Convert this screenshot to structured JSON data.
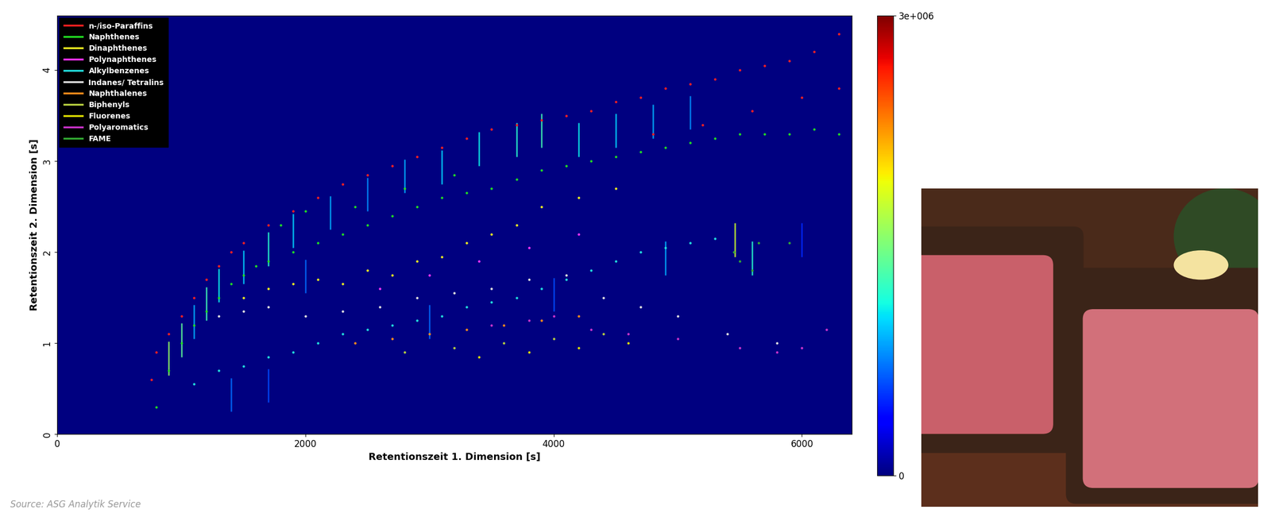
{
  "chart_data": {
    "type": "scatter",
    "x_label": "Retentionszeit 1. Dimension [s]",
    "y_label": "Retentionszeit 2. Dimension [s]",
    "source": "Source: ASG Analytik Service",
    "xlim": [
      0,
      6400
    ],
    "xticks": [
      0,
      2000,
      4000,
      6000
    ],
    "ylim": [
      0,
      4.6
    ],
    "yticks": [
      0,
      1,
      2,
      3,
      4
    ],
    "legend": "upper left",
    "marker": "dot",
    "colorbar": {
      "range": [
        0,
        3000000
      ],
      "ticks": [
        0,
        {
          "value": 3000000,
          "label": "3e+006"
        }
      ]
    },
    "peaks": {
      "x": [
        900,
        1000,
        1100,
        1200,
        1300,
        1400,
        1500,
        1700,
        1700,
        1900,
        2000,
        2200,
        2500,
        2800,
        3000,
        3100,
        3400,
        3700,
        3900,
        4000,
        4200,
        4500,
        4800,
        4900,
        5100,
        5460,
        5600,
        6000
      ],
      "y": [
        0.9,
        1.1,
        1.3,
        1.5,
        1.7,
        0.5,
        1.9,
        2.1,
        0.6,
        2.3,
        1.8,
        2.5,
        2.7,
        2.9,
        1.3,
        3.0,
        3.2,
        3.3,
        3.4,
        1.6,
        3.3,
        3.4,
        3.5,
        2.0,
        3.6,
        2.2,
        2.0,
        2.2
      ],
      "intensity": [
        1600000,
        1400000,
        900000,
        1300000,
        1100000,
        700000,
        1000000,
        1200000,
        600000,
        1000000,
        700000,
        900000,
        800000,
        900000,
        700000,
        1000000,
        1100000,
        1200000,
        1300000,
        600000,
        1100000,
        1000000,
        900000,
        900000,
        800000,
        1800000,
        1200000,
        500000
      ]
    },
    "series": [
      {
        "name": "n-/iso-Paraffins",
        "color": "#ff2020",
        "x": [
          760,
          800,
          900,
          1000,
          1100,
          1200,
          1300,
          1400,
          1500,
          1700,
          1900,
          2100,
          2300,
          2500,
          2700,
          2900,
          3100,
          3300,
          3500,
          3700,
          3900,
          4100,
          4300,
          4500,
          4700,
          4900,
          5100,
          5300,
          5500,
          5700,
          5900,
          6100,
          6300,
          4800,
          5200,
          5600,
          6000,
          6300
        ],
        "y": [
          0.6,
          0.9,
          1.1,
          1.3,
          1.5,
          1.7,
          1.85,
          2.0,
          2.1,
          2.3,
          2.45,
          2.6,
          2.75,
          2.85,
          2.95,
          3.05,
          3.15,
          3.25,
          3.35,
          3.4,
          3.45,
          3.5,
          3.55,
          3.65,
          3.7,
          3.8,
          3.85,
          3.9,
          4.0,
          4.05,
          4.1,
          4.2,
          4.4,
          3.3,
          3.4,
          3.55,
          3.7,
          3.8
        ]
      },
      {
        "name": "Naphthenes",
        "color": "#22dd22",
        "x": [
          800,
          900,
          1000,
          1100,
          1200,
          1300,
          1400,
          1500,
          1600,
          1700,
          1900,
          2100,
          2300,
          2500,
          2700,
          2900,
          3100,
          3300,
          3500,
          3700,
          3900,
          4100,
          4300,
          4500,
          4700,
          4900,
          5100,
          5300,
          5500,
          5700,
          5900,
          6100,
          6300,
          1800,
          2000,
          2400,
          2800,
          3200
        ],
        "y": [
          0.3,
          0.7,
          1.0,
          1.2,
          1.35,
          1.5,
          1.65,
          1.75,
          1.85,
          1.9,
          2.0,
          2.1,
          2.2,
          2.3,
          2.4,
          2.5,
          2.6,
          2.65,
          2.7,
          2.8,
          2.9,
          2.95,
          3.0,
          3.05,
          3.1,
          3.15,
          3.2,
          3.25,
          3.3,
          3.3,
          3.3,
          3.35,
          3.3,
          2.3,
          2.45,
          2.5,
          2.7,
          2.85
        ]
      },
      {
        "name": "Dinaphthenes",
        "color": "#f0f020",
        "x": [
          1500,
          1700,
          1900,
          2100,
          2300,
          2500,
          2700,
          2900,
          3100,
          3300,
          3500,
          3700,
          3900,
          4200,
          4500
        ],
        "y": [
          1.5,
          1.6,
          1.65,
          1.7,
          1.65,
          1.8,
          1.75,
          1.9,
          1.95,
          2.1,
          2.2,
          2.3,
          2.5,
          2.6,
          2.7
        ]
      },
      {
        "name": "Polynaphthenes",
        "color": "#ff33ff",
        "x": [
          2600,
          3000,
          3400,
          3800,
          4200
        ],
        "y": [
          1.6,
          1.75,
          1.9,
          2.05,
          2.2
        ]
      },
      {
        "name": "Alkylbenzenes",
        "color": "#22dddd",
        "x": [
          1100,
          1300,
          1500,
          1700,
          1900,
          2100,
          2300,
          2500,
          2700,
          2900,
          3100,
          3300,
          3500,
          3700,
          3900,
          4100,
          4300,
          4500,
          4700,
          4900,
          5100,
          5300
        ],
        "y": [
          0.55,
          0.7,
          0.75,
          0.85,
          0.9,
          1.0,
          1.1,
          1.15,
          1.2,
          1.25,
          1.3,
          1.4,
          1.45,
          1.5,
          1.6,
          1.7,
          1.8,
          1.9,
          2.0,
          2.05,
          2.1,
          2.15
        ]
      },
      {
        "name": "Indanes/ Tetralins",
        "color": "#e0e0e0",
        "x": [
          1300,
          1500,
          1700,
          2000,
          2300,
          2600,
          2900,
          3200,
          3500,
          3800,
          4100,
          4400,
          4700,
          5000,
          5400,
          5800
        ],
        "y": [
          1.3,
          1.35,
          1.4,
          1.3,
          1.35,
          1.4,
          1.5,
          1.55,
          1.6,
          1.7,
          1.75,
          1.5,
          1.4,
          1.3,
          1.1,
          1.0
        ]
      },
      {
        "name": "Naphthalenes",
        "color": "#ff8c1a",
        "x": [
          2400,
          2700,
          3000,
          3300,
          3600,
          3900,
          4200
        ],
        "y": [
          1.0,
          1.05,
          1.1,
          1.15,
          1.2,
          1.25,
          1.3
        ]
      },
      {
        "name": "Biphenyls",
        "color": "#b8d040",
        "x": [
          2800,
          3200,
          3600,
          4000,
          4400
        ],
        "y": [
          0.9,
          0.95,
          1.0,
          1.05,
          1.1
        ]
      },
      {
        "name": "Fluorenes",
        "color": "#e0e000",
        "x": [
          3400,
          3800,
          4200,
          4600
        ],
        "y": [
          0.85,
          0.9,
          0.95,
          1.0
        ]
      },
      {
        "name": "Polyaromatics",
        "color": "#cc33cc",
        "x": [
          3500,
          3800,
          4000,
          4300,
          4600,
          5000,
          5500,
          5800,
          6000,
          6200
        ],
        "y": [
          1.2,
          1.25,
          1.3,
          1.15,
          1.1,
          1.05,
          0.95,
          0.9,
          0.95,
          1.15
        ]
      },
      {
        "name": "FAME",
        "color": "#33aa33",
        "x": [
          5450,
          5500,
          5600,
          5650,
          5900
        ],
        "y": [
          2.0,
          1.9,
          1.8,
          2.1,
          2.1
        ]
      }
    ]
  }
}
